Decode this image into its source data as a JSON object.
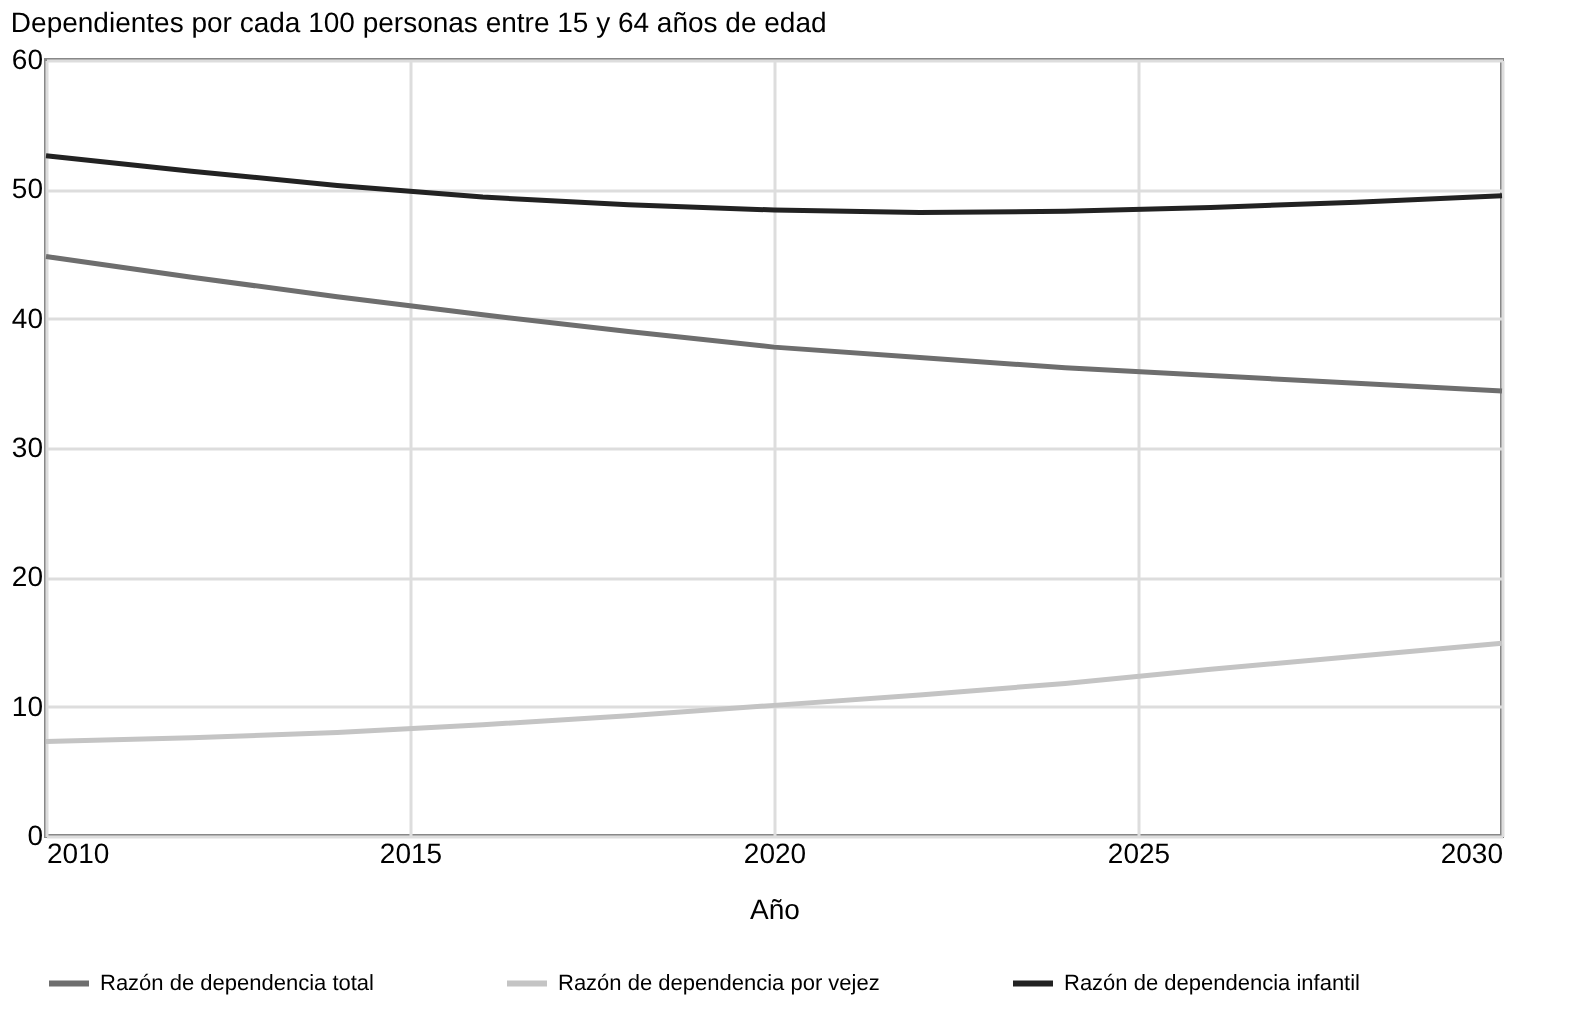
{
  "chart_data": {
    "type": "line",
    "title": "Dependientes por cada 100 personas entre 15 y 64 años de edad",
    "xlabel": "Año",
    "x": [
      2010,
      2012,
      2014,
      2016,
      2018,
      2020,
      2022,
      2024,
      2026,
      2028,
      2030
    ],
    "series": [
      {
        "name": "Razón de dependencia total",
        "color": "#6e6e6e",
        "values": [
          44.8,
          43.2,
          41.7,
          40.3,
          39.0,
          37.8,
          37.0,
          36.2,
          35.6,
          35.0,
          34.4
        ]
      },
      {
        "name": "Razón de dependencia por vejez",
        "color": "#c4c4c4",
        "values": [
          7.3,
          7.6,
          8.0,
          8.6,
          9.3,
          10.1,
          10.9,
          11.8,
          12.9,
          13.9,
          14.9
        ]
      },
      {
        "name": "Razón de dependencia infantil",
        "color": "#222222",
        "values": [
          52.6,
          51.4,
          50.3,
          49.4,
          48.8,
          48.4,
          48.2,
          48.3,
          48.6,
          49.0,
          49.5
        ]
      }
    ],
    "xlim": [
      2010,
      2030
    ],
    "xticks": [
      2010,
      2015,
      2020,
      2025,
      2030
    ],
    "ylim": [
      0,
      60
    ],
    "yticks": [
      0,
      10,
      20,
      30,
      40,
      50,
      60
    ],
    "grid": true,
    "legend": "bottom",
    "marker": "none",
    "line_style": "solid"
  }
}
